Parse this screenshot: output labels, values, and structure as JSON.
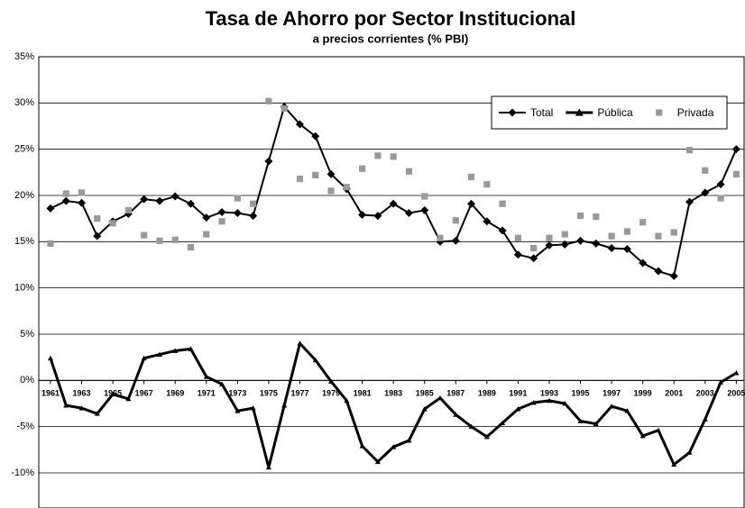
{
  "chart_data": {
    "type": "line",
    "title": "Tasa de Ahorro por Sector Institucional",
    "subtitle": "a precios corrientes (% PBI)",
    "x": [
      1961,
      1962,
      1963,
      1964,
      1965,
      1966,
      1967,
      1968,
      1969,
      1970,
      1971,
      1972,
      1973,
      1974,
      1975,
      1976,
      1977,
      1978,
      1979,
      1980,
      1981,
      1982,
      1983,
      1984,
      1985,
      1986,
      1987,
      1988,
      1989,
      1990,
      1991,
      1992,
      1993,
      1994,
      1995,
      1996,
      1997,
      1998,
      1999,
      2000,
      2001,
      2002,
      2003,
      2004,
      2005
    ],
    "xlim": [
      1960.25,
      2005.5
    ],
    "xticks": [
      1961,
      1963,
      1965,
      1967,
      1969,
      1971,
      1973,
      1975,
      1977,
      1979,
      1981,
      1983,
      1985,
      1987,
      1989,
      1991,
      1993,
      1995,
      1997,
      1999,
      2001,
      2003,
      2005
    ],
    "ylim": [
      -13.8,
      35
    ],
    "yticks": [
      {
        "value": 35,
        "label": "35%"
      },
      {
        "value": 30,
        "label": "30%"
      },
      {
        "value": 25,
        "label": "25%"
      },
      {
        "value": 20,
        "label": "20%"
      },
      {
        "value": 15,
        "label": "15%"
      },
      {
        "value": 10,
        "label": "10%"
      },
      {
        "value": 5,
        "label": "5%"
      },
      {
        "value": 0,
        "label": "0%"
      },
      {
        "value": -5,
        "label": "-5%"
      },
      {
        "value": -10,
        "label": "-10%"
      }
    ],
    "grid": true,
    "legend": "upper right",
    "series": [
      {
        "name": "Total",
        "color": "#000000",
        "marker": "diamond",
        "line": true,
        "values": [
          18.6,
          19.4,
          19.2,
          15.6,
          17.2,
          18.0,
          19.6,
          19.4,
          19.9,
          19.1,
          17.6,
          18.2,
          18.1,
          17.8,
          23.7,
          29.6,
          27.7,
          26.4,
          22.3,
          20.7,
          17.9,
          17.8,
          19.1,
          18.1,
          18.4,
          15.0,
          15.1,
          19.1,
          17.2,
          16.2,
          13.6,
          13.2,
          14.6,
          14.7,
          15.1,
          14.8,
          14.3,
          14.2,
          12.7,
          11.8,
          11.3,
          19.3,
          20.3,
          21.2,
          25.0
        ]
      },
      {
        "name": "Pública",
        "color": "#000000",
        "marker": "triangle",
        "line": true,
        "values": [
          2.4,
          -2.7,
          -3.0,
          -3.6,
          -1.5,
          -2.0,
          2.4,
          2.8,
          3.2,
          3.4,
          0.4,
          -0.4,
          -3.3,
          -3.0,
          -9.4,
          -2.7,
          4.0,
          2.2,
          -0.1,
          -2.2,
          -7.1,
          -8.8,
          -7.2,
          -6.5,
          -3.1,
          -1.9,
          -3.7,
          -5.0,
          -6.1,
          -4.6,
          -3.1,
          -2.4,
          -2.2,
          -2.5,
          -4.4,
          -4.7,
          -2.8,
          -3.3,
          -6.0,
          -5.4,
          -9.1,
          -7.8,
          -4.2,
          -0.2,
          0.8
        ]
      },
      {
        "name": "Privada",
        "color": "#999999",
        "marker": "square",
        "line": false,
        "values": [
          14.8,
          20.2,
          20.3,
          17.5,
          17.0,
          18.4,
          15.7,
          15.1,
          15.2,
          14.4,
          15.8,
          17.2,
          19.7,
          19.1,
          30.2,
          29.4,
          21.8,
          22.2,
          20.5,
          20.9,
          22.9,
          24.3,
          24.2,
          22.6,
          19.9,
          15.4,
          17.3,
          22.0,
          21.2,
          19.1,
          15.4,
          14.3,
          15.4,
          15.8,
          17.8,
          17.7,
          15.6,
          16.1,
          17.1,
          15.6,
          16.0,
          24.9,
          22.7,
          19.7,
          22.3
        ]
      }
    ]
  }
}
